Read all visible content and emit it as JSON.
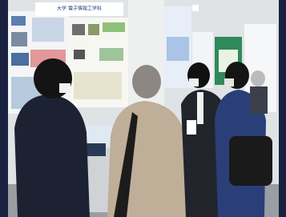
{
  "scene": {
    "sign": "大学 電子情報工学科"
  }
}
